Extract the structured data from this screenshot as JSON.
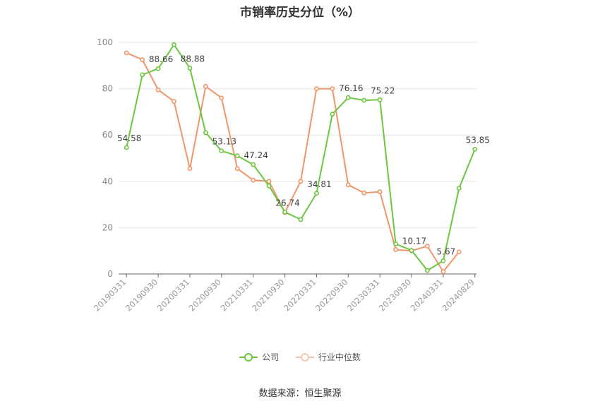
{
  "chart_data": {
    "type": "line",
    "title": "市销率历史分位（%）",
    "xlabel": "",
    "ylabel": "",
    "ylim": [
      0,
      100
    ],
    "yticks": [
      0,
      20,
      40,
      60,
      80,
      100
    ],
    "grid": true,
    "legend_position": "bottom",
    "x": [
      "20190331",
      "20190630",
      "20190930",
      "20191231",
      "20200331",
      "20200630",
      "20200930",
      "20201231",
      "20210331",
      "20210630",
      "20210930",
      "20211231",
      "20220331",
      "20220630",
      "20220930",
      "20221231",
      "20230331",
      "20230630",
      "20230930",
      "20231231",
      "20240331",
      "20240630",
      "20240829"
    ],
    "xtick_labels": [
      "20190331",
      "20190930",
      "20200331",
      "20200930",
      "20210331",
      "20210930",
      "20220331",
      "20220930",
      "20230331",
      "20230930",
      "20240331",
      "20240829"
    ],
    "series": [
      {
        "name": "公司",
        "color": "#6cc63f",
        "values": [
          54.58,
          86,
          88.66,
          99,
          88.88,
          61,
          53.13,
          51,
          47.24,
          38,
          26.74,
          23.5,
          34.81,
          69,
          76.16,
          75,
          75.22,
          13,
          10.17,
          1.5,
          5.67,
          37,
          53.85
        ],
        "labels": {
          "0": "54.58",
          "2": "88.66",
          "4": "88.88",
          "6": "53.13",
          "8": "47.24",
          "10": "26.74",
          "12": "34.81",
          "14": "76.16",
          "16": "75.22",
          "18": "10.17",
          "20": "5.67",
          "22": "53.85"
        }
      },
      {
        "name": "行业中位数",
        "color": "#f0956a",
        "values": [
          95.5,
          92.5,
          79.5,
          74.5,
          45.5,
          81,
          76,
          45.5,
          40.5,
          40,
          26.5,
          40,
          80,
          80,
          38.5,
          35,
          35.5,
          10.5,
          10,
          12,
          1,
          9.5,
          null
        ]
      }
    ]
  },
  "source": "数据来源：恒生聚源"
}
